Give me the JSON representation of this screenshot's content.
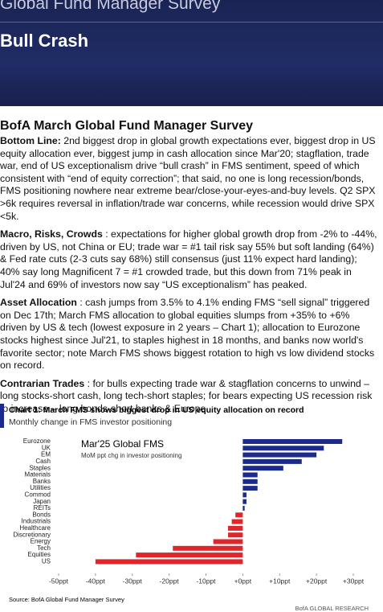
{
  "header": {
    "top_title": "Global Fund Manager Survey",
    "title": "Bull Crash"
  },
  "heading": "BofA March Global Fund Manager Survey",
  "paragraphs": [
    {
      "lead": "Bottom Line:",
      "body": "2nd biggest drop in global growth expectations ever, biggest drop in US equity allocation ever, biggest jump in cash allocation since Mar'20; stagflation, trade war, end of US exceptionalism drive “bull crash” in FMS sentiment, speed of which consistent with “end of equity correction”; that said, no one is long recession/bonds, FMS positioning nowhere near extreme bear/close-your-eyes-and-buy levels. Q2 SPX >6k requires reversal in inflation/trade war concerns, while recession would drive SPX <5k."
    },
    {
      "lead": "Macro, Risks, Crowds",
      "body": ": expectations for higher global growth drop from -2% to -44%, driven by US, not China or EU; trade war = #1 tail risk say 55% but soft landing (64%) & Fed rate cuts (2-3 cuts say 68%) still consensus (just 11% expect hard landing); 40% say long Magnificent 7 = #1 crowded trade, but this down from 71% peak in Jul'24 and 69% of investors now say “US exceptionalism” has peaked."
    },
    {
      "lead": "Asset Allocation",
      "body": ": cash jumps from 3.5% to 4.1% ending FMS “sell signal” triggered on Dec 17th; March FMS allocation to global equities slumps from +35% to +6% driven by US & tech (lowest exposure in 2 years – Chart 1); allocation to Eurozone stocks highest since Jul'21, to staples highest in 18 months, and banks now world's favorite sector; note March FMS shows biggest rotation to high vs low dividend stocks on record."
    },
    {
      "lead": "Contrarian Trades",
      "body": ": for bulls expecting trade war & stagflation concerns to unwind – long stocks-short cash, long tech-short staples; for bears expecting US recession risk to increase – long bonds-short banks & Europe."
    }
  ],
  "chart": {
    "type": "bar",
    "orientation": "horizontal",
    "title": "Chart 1: March FMS shows biggest drop in US equity allocation on record",
    "subtitle": "Monthly change in FMS investor positioning",
    "legend_title": "Mar'25 Global FMS",
    "legend_subtitle": "MoM ppt chg in investor positioning",
    "categories": [
      "Eurozone",
      "UK",
      "EM",
      "Cash",
      "Staples",
      "Materials",
      "Banks",
      "Utilities",
      "Commod",
      "Japan",
      "REITs",
      "Bonds",
      "Industrials",
      "Healthcare",
      "Discretionary",
      "Energy",
      "Tech",
      "Equities",
      "US"
    ],
    "values": [
      27,
      22,
      20,
      16,
      11,
      4,
      4,
      4,
      1,
      1,
      0.5,
      -2,
      -3,
      -4,
      -4,
      -8,
      -19,
      -29,
      -40
    ],
    "color_positive": "#1b2a8c",
    "color_negative": "#e0262a",
    "xlim": [
      -50,
      30
    ],
    "xticks": [
      {
        "value": -50,
        "label": "-50ppt"
      },
      {
        "value": -40,
        "label": "-40ppt"
      },
      {
        "value": -30,
        "label": "-30ppt"
      },
      {
        "value": -20,
        "label": "-20ppt"
      },
      {
        "value": -10,
        "label": "-10ppt"
      },
      {
        "value": 0,
        "label": "+0ppt"
      },
      {
        "value": 10,
        "label": "+10ppt"
      },
      {
        "value": 20,
        "label": "+20ppt"
      },
      {
        "value": 30,
        "label": "+30ppt"
      }
    ],
    "source": "Source: BofA Global Fund Manager Survey",
    "footer": "BofA GLOBAL RESEARCH"
  }
}
